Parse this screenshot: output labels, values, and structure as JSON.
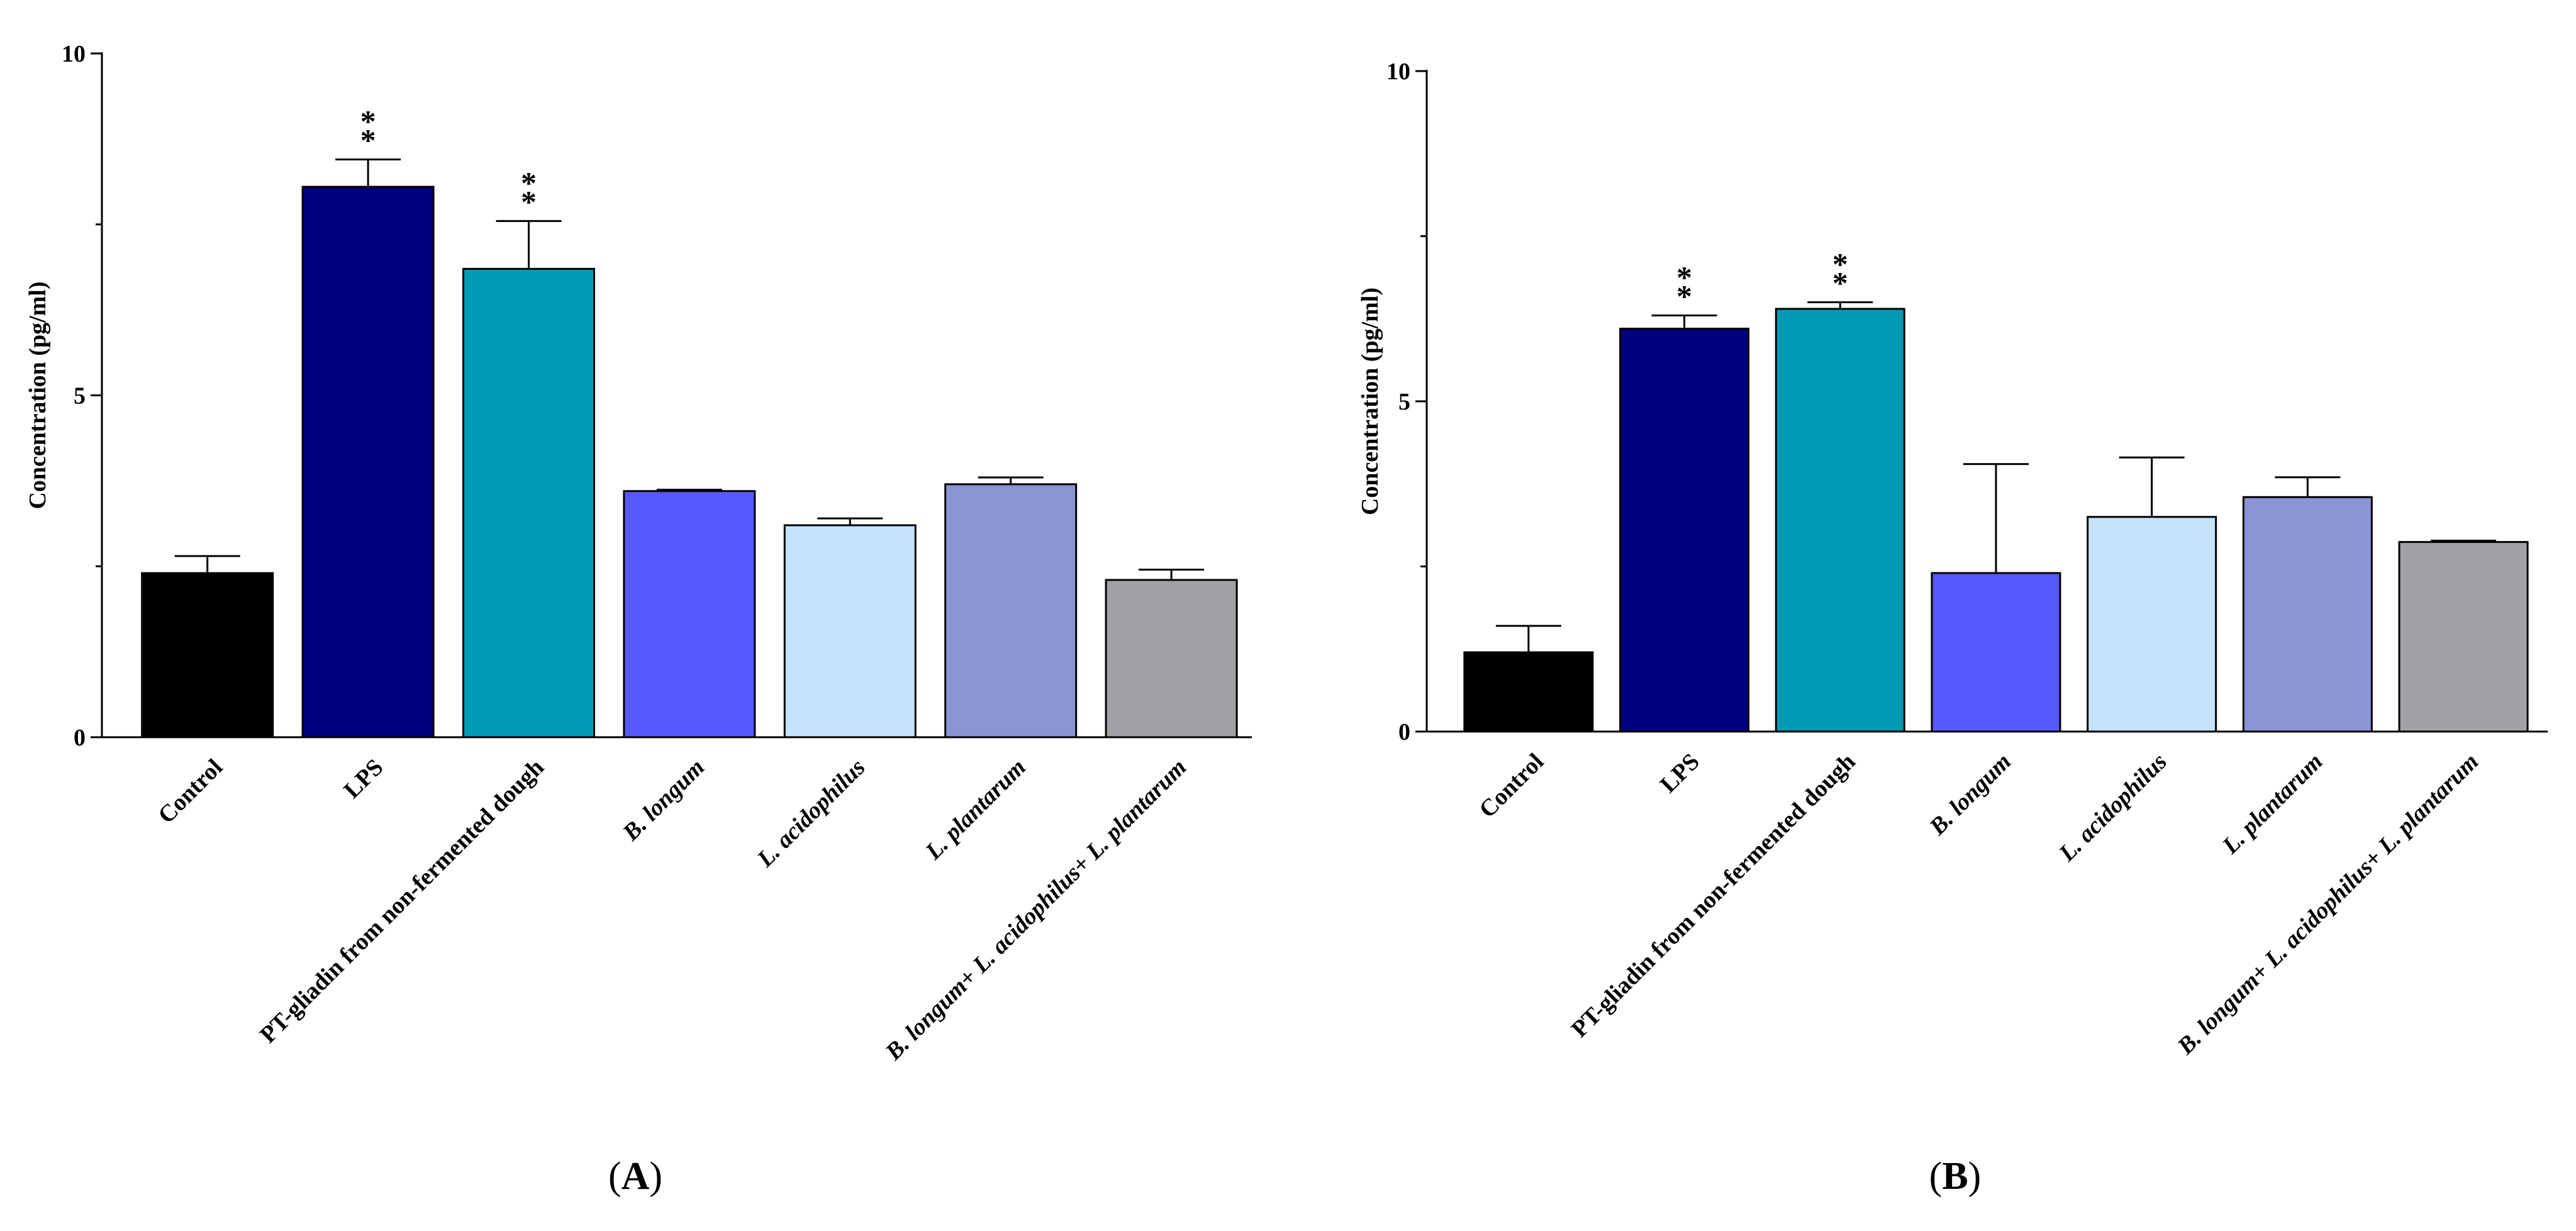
{
  "figure": {
    "panels": [
      "A",
      "B"
    ]
  },
  "chart_data": [
    {
      "panel": "A",
      "type": "bar",
      "ylabel": "Concentration (pg/ml)",
      "xlabel": "",
      "ylim": [
        0,
        10
      ],
      "yticks": [
        0,
        5,
        10
      ],
      "categories": [
        {
          "parts": [
            {
              "text": "Control",
              "italic": false
            }
          ]
        },
        {
          "parts": [
            {
              "text": "LPS",
              "italic": false
            }
          ]
        },
        {
          "parts": [
            {
              "text": "PT-gliadin from non-fermented dough",
              "italic": false
            }
          ]
        },
        {
          "parts": [
            {
              "text": "B. longum",
              "italic": true
            }
          ]
        },
        {
          "parts": [
            {
              "text": "L. acidophilus",
              "italic": true
            }
          ]
        },
        {
          "parts": [
            {
              "text": "L. plantarum",
              "italic": true
            }
          ]
        },
        {
          "parts": [
            {
              "text": "B. longum",
              "italic": true
            },
            {
              "text": "+ ",
              "italic": false
            },
            {
              "text": "L. acidophilus",
              "italic": true
            },
            {
              "text": "+ ",
              "italic": false
            },
            {
              "text": "L. plantarum",
              "italic": true
            }
          ]
        }
      ],
      "values": [
        2.4,
        8.05,
        6.85,
        3.6,
        3.1,
        3.7,
        2.3
      ],
      "errors": [
        0.25,
        0.4,
        0.7,
        0.02,
        0.1,
        0.1,
        0.15
      ],
      "colors": [
        "#000000",
        "#00007f",
        "#009ab4",
        "#5858ff",
        "#c4e2fa",
        "#8b95d3",
        "#a2a1a5"
      ],
      "significance": [
        "",
        "**",
        "**",
        "",
        "",
        "",
        ""
      ]
    },
    {
      "panel": "B",
      "type": "bar",
      "ylabel": "Concentration (pg/ml)",
      "xlabel": "",
      "ylim": [
        0,
        10
      ],
      "yticks": [
        0,
        5,
        10
      ],
      "categories": [
        {
          "parts": [
            {
              "text": "Control",
              "italic": false
            }
          ]
        },
        {
          "parts": [
            {
              "text": "LPS",
              "italic": false
            }
          ]
        },
        {
          "parts": [
            {
              "text": "PT-gliadin from non-fermented dough",
              "italic": false
            }
          ]
        },
        {
          "parts": [
            {
              "text": "B. longum",
              "italic": true
            }
          ]
        },
        {
          "parts": [
            {
              "text": "L. acidophilus",
              "italic": true
            }
          ]
        },
        {
          "parts": [
            {
              "text": "L. plantarum",
              "italic": true
            }
          ]
        },
        {
          "parts": [
            {
              "text": "B. longum",
              "italic": true
            },
            {
              "text": "+ ",
              "italic": false
            },
            {
              "text": "L. acidophilus",
              "italic": true
            },
            {
              "text": "+ ",
              "italic": false
            },
            {
              "text": "L. plantarum",
              "italic": true
            }
          ]
        }
      ],
      "values": [
        1.2,
        6.1,
        6.4,
        2.4,
        3.25,
        3.55,
        2.87
      ],
      "errors": [
        0.4,
        0.2,
        0.1,
        1.65,
        0.9,
        0.3,
        0.02
      ],
      "colors": [
        "#000000",
        "#00007f",
        "#009ab4",
        "#5858ff",
        "#c4e2fa",
        "#8b95d3",
        "#a2a1a5"
      ],
      "significance": [
        "",
        "**",
        "**",
        "",
        "",
        "",
        ""
      ]
    }
  ]
}
